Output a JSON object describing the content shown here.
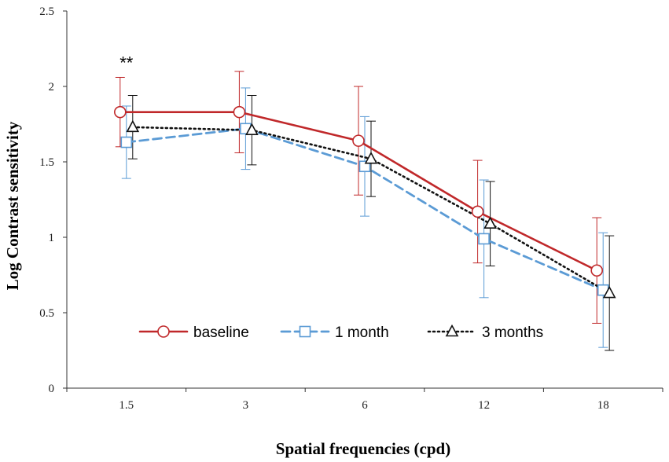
{
  "chart_data": {
    "type": "line",
    "title": "",
    "xlabel": "Spatial frequencies (cpd)",
    "ylabel": "Log Contrast sensitivity",
    "ylim": [
      0,
      2.5
    ],
    "yticks": [
      "0",
      "0.5",
      "1",
      "1.5",
      "2",
      "2.5"
    ],
    "categories": [
      "1.5",
      "3",
      "6",
      "12",
      "18"
    ],
    "grid": false,
    "legend_position": "bottom-center",
    "series": [
      {
        "name": "baseline",
        "color": "#c0282a",
        "line_style": "solid",
        "marker": "circle",
        "values": [
          1.83,
          1.83,
          1.64,
          1.17,
          0.78
        ],
        "error_low": [
          1.6,
          1.56,
          1.28,
          0.83,
          0.43
        ],
        "error_high": [
          2.06,
          2.1,
          2.0,
          1.51,
          1.13
        ]
      },
      {
        "name": "1 month",
        "color": "#5b9bd5",
        "line_style": "dashed",
        "marker": "square",
        "values": [
          1.63,
          1.72,
          1.47,
          0.99,
          0.65
        ],
        "error_low": [
          1.39,
          1.45,
          1.14,
          0.6,
          0.27
        ],
        "error_high": [
          1.87,
          1.99,
          1.8,
          1.38,
          1.03
        ]
      },
      {
        "name": "3 months",
        "color": "#111111",
        "line_style": "dotted",
        "marker": "triangle",
        "values": [
          1.73,
          1.71,
          1.52,
          1.09,
          0.63
        ],
        "error_low": [
          1.52,
          1.48,
          1.27,
          0.81,
          0.25
        ],
        "error_high": [
          1.94,
          1.94,
          1.77,
          1.37,
          1.01
        ]
      }
    ],
    "annotations": [
      {
        "text": "**",
        "category": "1.5",
        "value": 2.16
      }
    ]
  }
}
